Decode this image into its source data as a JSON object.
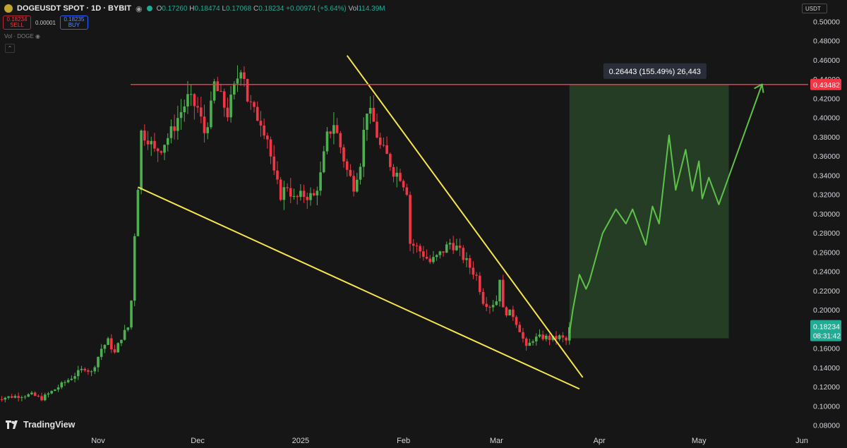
{
  "header": {
    "symbol": "DOGEUSDT SPOT · 1D · BYBIT",
    "ohlc": {
      "o_label": "O",
      "o": "0.17260",
      "h_label": "H",
      "h": "0.18474",
      "l_label": "L",
      "l": "0.17068",
      "c_label": "C",
      "c": "0.18234",
      "change": "+0.00974 (+5.64%)",
      "vol_label": "Vol",
      "vol": "114.39M"
    }
  },
  "trade": {
    "sell_price": "0.18234",
    "sell_label": "SELL",
    "spread": "0.00001",
    "buy_price": "0.18235",
    "buy_label": "BUY"
  },
  "volume_label": "Vol · DOGE",
  "currency": "USDT",
  "brand": "TradingView",
  "colors": {
    "background": "#161616",
    "up": "#4caf50",
    "down": "#f23645",
    "trendline": "#f7e64a",
    "resistance": "#f23645",
    "target_zone": "#263f26",
    "projection": "#5ec24a"
  },
  "chart_data": {
    "type": "candlestick",
    "y_axis": {
      "min": 0.075,
      "max": 0.51,
      "ticks": [
        "0.08000",
        "0.10000",
        "0.12000",
        "0.14000",
        "0.16000",
        "0.18000",
        "0.20000",
        "0.22000",
        "0.24000",
        "0.26000",
        "0.28000",
        "0.30000",
        "0.32000",
        "0.34000",
        "0.36000",
        "0.38000",
        "0.40000",
        "0.42000",
        "0.44000",
        "0.46000",
        "0.48000",
        "0.50000"
      ]
    },
    "x_axis": {
      "start": "2024-10-01",
      "labels": [
        {
          "text": "Nov",
          "date": "2024-11-01"
        },
        {
          "text": "Dec",
          "date": "2024-12-01"
        },
        {
          "text": "2025",
          "date": "2025-01-01"
        },
        {
          "text": "Feb",
          "date": "2025-02-01"
        },
        {
          "text": "Mar",
          "date": "2025-03-01"
        },
        {
          "text": "Apr",
          "date": "2025-04-01"
        },
        {
          "text": "May",
          "date": "2025-05-01"
        },
        {
          "text": "Jun",
          "date": "2025-06-01"
        }
      ]
    },
    "close_path": [
      [
        "2024-10-01",
        0.108
      ],
      [
        "2024-10-06",
        0.11
      ],
      [
        "2024-10-12",
        0.112
      ],
      [
        "2024-10-15",
        0.108
      ],
      [
        "2024-10-20",
        0.12
      ],
      [
        "2024-10-24",
        0.13
      ],
      [
        "2024-10-28",
        0.14
      ],
      [
        "2024-10-30",
        0.135
      ],
      [
        "2024-11-02",
        0.16
      ],
      [
        "2024-11-04",
        0.168
      ],
      [
        "2024-11-06",
        0.155
      ],
      [
        "2024-11-08",
        0.172
      ],
      [
        "2024-11-10",
        0.182
      ],
      [
        "2024-11-11",
        0.21
      ],
      [
        "2024-11-12",
        0.28
      ],
      [
        "2024-11-13",
        0.33
      ],
      [
        "2024-11-14",
        0.385
      ],
      [
        "2024-11-16",
        0.38
      ],
      [
        "2024-11-18",
        0.365
      ],
      [
        "2024-11-20",
        0.37
      ],
      [
        "2024-11-23",
        0.385
      ],
      [
        "2024-11-25",
        0.4
      ],
      [
        "2024-11-28",
        0.42
      ],
      [
        "2024-12-01",
        0.41
      ],
      [
        "2024-12-03",
        0.385
      ],
      [
        "2024-12-05",
        0.41
      ],
      [
        "2024-12-06",
        0.435
      ],
      [
        "2024-12-08",
        0.42
      ],
      [
        "2024-12-10",
        0.405
      ],
      [
        "2024-12-12",
        0.43
      ],
      [
        "2024-12-14",
        0.455
      ],
      [
        "2024-12-15",
        0.445
      ],
      [
        "2024-12-16",
        0.42
      ],
      [
        "2024-12-18",
        0.405
      ],
      [
        "2024-12-20",
        0.398
      ],
      [
        "2024-12-22",
        0.38
      ],
      [
        "2024-12-24",
        0.34
      ],
      [
        "2024-12-26",
        0.32
      ],
      [
        "2024-12-28",
        0.33
      ],
      [
        "2024-12-30",
        0.315
      ],
      [
        "2025-01-02",
        0.32
      ],
      [
        "2025-01-05",
        0.318
      ],
      [
        "2025-01-07",
        0.34
      ],
      [
        "2025-01-09",
        0.38
      ],
      [
        "2025-01-11",
        0.395
      ],
      [
        "2025-01-13",
        0.37
      ],
      [
        "2025-01-15",
        0.345
      ],
      [
        "2025-01-17",
        0.33
      ],
      [
        "2025-01-19",
        0.355
      ],
      [
        "2025-01-20",
        0.385
      ],
      [
        "2025-01-21",
        0.41
      ],
      [
        "2025-01-23",
        0.395
      ],
      [
        "2025-01-25",
        0.37
      ],
      [
        "2025-01-27",
        0.36
      ],
      [
        "2025-01-29",
        0.345
      ],
      [
        "2025-01-31",
        0.34
      ],
      [
        "2025-02-02",
        0.325
      ],
      [
        "2025-02-03",
        0.27
      ],
      [
        "2025-02-05",
        0.265
      ],
      [
        "2025-02-07",
        0.258
      ],
      [
        "2025-02-09",
        0.25
      ],
      [
        "2025-02-11",
        0.255
      ],
      [
        "2025-02-13",
        0.262
      ],
      [
        "2025-02-15",
        0.27
      ],
      [
        "2025-02-17",
        0.265
      ],
      [
        "2025-02-19",
        0.255
      ],
      [
        "2025-02-21",
        0.245
      ],
      [
        "2025-02-23",
        0.235
      ],
      [
        "2025-02-25",
        0.21
      ],
      [
        "2025-02-27",
        0.205
      ],
      [
        "2025-03-01",
        0.21
      ],
      [
        "2025-03-02",
        0.235
      ],
      [
        "2025-03-03",
        0.2
      ],
      [
        "2025-03-06",
        0.195
      ],
      [
        "2025-03-08",
        0.18
      ],
      [
        "2025-03-10",
        0.16
      ],
      [
        "2025-03-12",
        0.17
      ],
      [
        "2025-03-15",
        0.172
      ],
      [
        "2025-03-18",
        0.17
      ],
      [
        "2025-03-20",
        0.172
      ],
      [
        "2025-03-22",
        0.168
      ],
      [
        "2025-03-23",
        0.1823
      ]
    ],
    "annotations": {
      "resistance_level": 0.43482,
      "resistance_label": "0.43482",
      "last_price_label": "0.18234",
      "countdown": "08:31:42",
      "measure_label": "0.26443 (155.49%) 26,443",
      "upper_trendline": [
        [
          "2025-01-15",
          0.465
        ],
        [
          "2025-03-27",
          0.13
        ]
      ],
      "lower_trendline": [
        [
          "2024-11-13",
          0.328
        ],
        [
          "2025-03-26",
          0.118
        ]
      ],
      "target_zone": {
        "from": "2025-03-23",
        "to": "2025-05-10",
        "low": 0.17068,
        "high": 0.43482
      },
      "projection_path": [
        [
          "2025-03-23",
          0.176
        ],
        [
          "2025-03-24",
          0.2
        ],
        [
          "2025-03-26",
          0.237
        ],
        [
          "2025-03-28",
          0.222
        ],
        [
          "2025-03-29",
          0.23
        ],
        [
          "2025-04-02",
          0.28
        ],
        [
          "2025-04-06",
          0.305
        ],
        [
          "2025-04-09",
          0.29
        ],
        [
          "2025-04-11",
          0.305
        ],
        [
          "2025-04-15",
          0.268
        ],
        [
          "2025-04-17",
          0.308
        ],
        [
          "2025-04-19",
          0.29
        ],
        [
          "2025-04-22",
          0.382
        ],
        [
          "2025-04-24",
          0.325
        ],
        [
          "2025-04-27",
          0.367
        ],
        [
          "2025-04-29",
          0.324
        ],
        [
          "2025-05-01",
          0.355
        ],
        [
          "2025-05-02",
          0.316
        ],
        [
          "2025-05-04",
          0.338
        ],
        [
          "2025-05-07",
          0.31
        ],
        [
          "2025-05-20",
          0.435
        ]
      ]
    }
  }
}
